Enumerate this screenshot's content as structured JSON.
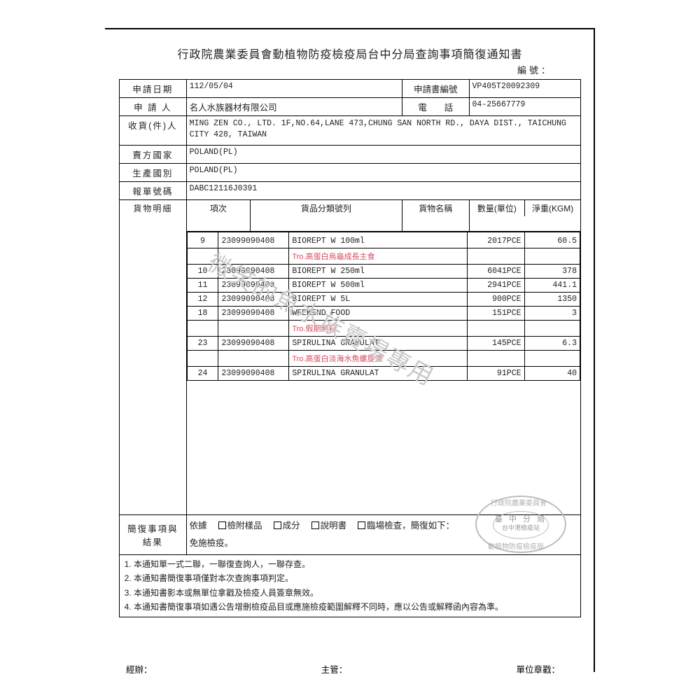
{
  "title": "行政院農業委員會動植物防疫檢疫局台中分局查詢事項簡復通知書",
  "serial_label": "編號：",
  "header": {
    "apply_date_label": "申請日期",
    "apply_date": "112/05/04",
    "form_no_label": "申請書編號",
    "form_no": "VP405T20092309",
    "applicant_label": "申 請 人",
    "applicant": "名人水族器材有限公司",
    "phone_label": "電　　話",
    "phone": "04-25667779",
    "consignee_label": "收貨(件)人",
    "consignee": "MING ZEN CO., LTD. 1F,NO.64,LANE 473,CHUNG SAN NORTH RD., DAYA DIST., TAICHUNG CITY 428, TAIWAN",
    "seller_country_label": "賣方國家",
    "seller_country": "POLAND(PL)",
    "origin_country_label": "生產國別",
    "origin_country": "POLAND(PL)",
    "decl_no_label": "報單號碼",
    "decl_no": "DABC12116J0391"
  },
  "items": {
    "section_label": "貨物明細",
    "col_seq": "項次",
    "col_code": "貨品分類號列",
    "col_name": "貨物名稱",
    "col_qty": "數量(單位)",
    "col_wt": "淨重(KGM)",
    "rows": [
      {
        "seq": "9",
        "code": "23099090408",
        "name": "BIOREPT W  100ml",
        "qty": "2017PCE",
        "wt": "60.5",
        "red": "Tro.高蛋白烏龜成長主食"
      },
      {
        "seq": "10",
        "code": "23099090408",
        "name": "BIOREPT W  250ml",
        "qty": "6041PCE",
        "wt": "378",
        "red": ""
      },
      {
        "seq": "11",
        "code": "23099090408",
        "name": "BIOREPT W  500ml",
        "qty": "2941PCE",
        "wt": "441.1",
        "red": ""
      },
      {
        "seq": "12",
        "code": "23099090408",
        "name": "BIOREPT W  5L",
        "qty": "900PCE",
        "wt": "1350",
        "red": ""
      },
      {
        "seq": "18",
        "code": "23099090408",
        "name": "WEEKEND FOOD",
        "qty": "151PCE",
        "wt": "3",
        "red": "Tro.假期飼料"
      },
      {
        "seq": "23",
        "code": "23099090408",
        "name": "SPIRULINA GRANULAT",
        "qty": "145PCE",
        "wt": "6.3",
        "red": "Tro.高蛋白淡海水魚螺旋藻"
      },
      {
        "seq": "24",
        "code": "23099090408",
        "name": "SPIRULINA GRANULAT",
        "qty": "91PCE",
        "wt": "40",
        "red": ""
      }
    ]
  },
  "reply": {
    "label": "簡復事項與結果",
    "basis_label": "依據",
    "opt_sample": "檢附樣品",
    "opt_ingredient": "成分",
    "opt_manual": "說明書",
    "opt_onsite": "臨場檢查，簡復如下：",
    "result": "免施檢疫。"
  },
  "notes": {
    "n1": "本通知單一式二聯，一聯復查詢人，一聯存查。",
    "n2": "本通知書簡復事項僅對本次查詢事項判定。",
    "n3": "本通知書影本或無單位拿戳及檢疫人員簽章無效。",
    "n4": "本通知書簡復事項如遇公告增刪檢疫品目或應施檢疫範圍解釋不同時，應以公告或解釋函內容為準。"
  },
  "sig": {
    "left": "經辦：",
    "mid": "主管：",
    "right": "單位章戳："
  },
  "watermark": "微笑的魚水族賣場專用",
  "stamp": {
    "arc_top": "行政院農業委員會",
    "line1": "臺 中 分 局",
    "line2": "台中港檢疫站",
    "arc_bot": "動植物防疫檢疫局"
  },
  "colors": {
    "border": "#000000",
    "text": "#222222",
    "red": "#d94a5a",
    "watermark": "#c9c9c9",
    "stamp": "#b0b0b0"
  }
}
